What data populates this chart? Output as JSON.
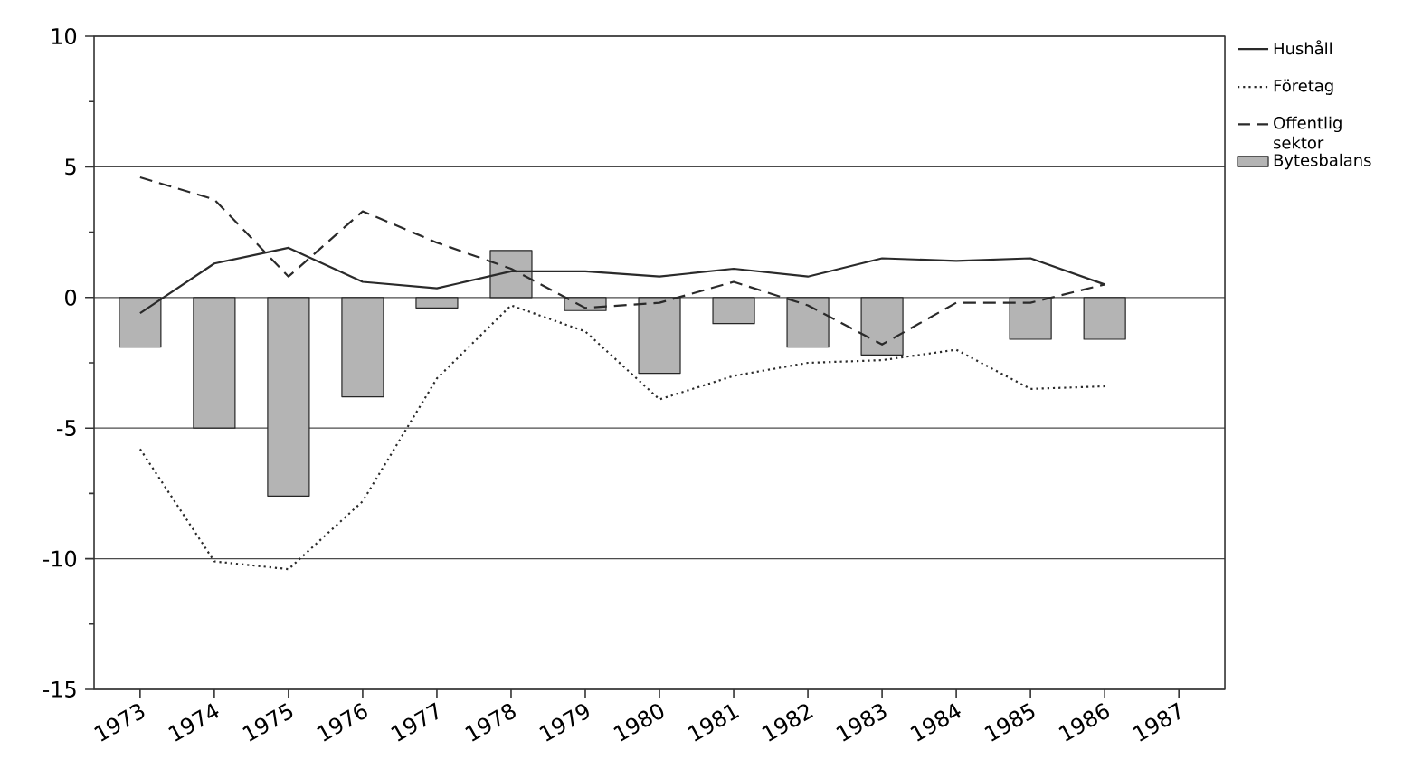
{
  "chart_data": {
    "type": "line",
    "categories": [
      "1973",
      "1974",
      "1975",
      "1976",
      "1977",
      "1978",
      "1979",
      "1980",
      "1981",
      "1982",
      "1983",
      "1984",
      "1985",
      "1986",
      "1987"
    ],
    "series": [
      {
        "name": "Hushåll",
        "line_style": "solid",
        "color": "#2a2a2a",
        "values": [
          -0.6,
          1.3,
          1.9,
          0.6,
          0.35,
          1.0,
          1.0,
          0.8,
          1.1,
          0.8,
          1.5,
          1.4,
          1.5,
          0.5,
          null
        ]
      },
      {
        "name": "Företag",
        "line_style": "dotted",
        "color": "#2a2a2a",
        "values": [
          -5.8,
          -10.1,
          -10.4,
          -7.8,
          -3.1,
          -0.3,
          -1.3,
          -3.9,
          -3.0,
          -2.5,
          -2.4,
          -2.0,
          -3.5,
          -3.4,
          null
        ]
      },
      {
        "name": "Offentlig sektor",
        "line_style": "dashed",
        "color": "#2a2a2a",
        "values": [
          4.6,
          3.75,
          0.8,
          3.3,
          2.1,
          1.1,
          -0.4,
          -0.2,
          0.6,
          -0.3,
          -1.8,
          -0.2,
          -0.2,
          0.5,
          null
        ]
      },
      {
        "name": "Bytesbalans",
        "type": "bar",
        "color": "#b4b4b4",
        "values": [
          -1.9,
          -5.0,
          -7.6,
          -3.8,
          -0.4,
          1.8,
          -0.5,
          -2.9,
          -1.0,
          -1.9,
          -2.2,
          null,
          -1.6,
          -1.6,
          null
        ]
      }
    ],
    "ylim": [
      -15,
      10
    ],
    "yticks": [
      -15,
      -10,
      -5,
      0,
      5,
      10
    ],
    "grid": "y",
    "legend": "right",
    "marker": "none"
  }
}
